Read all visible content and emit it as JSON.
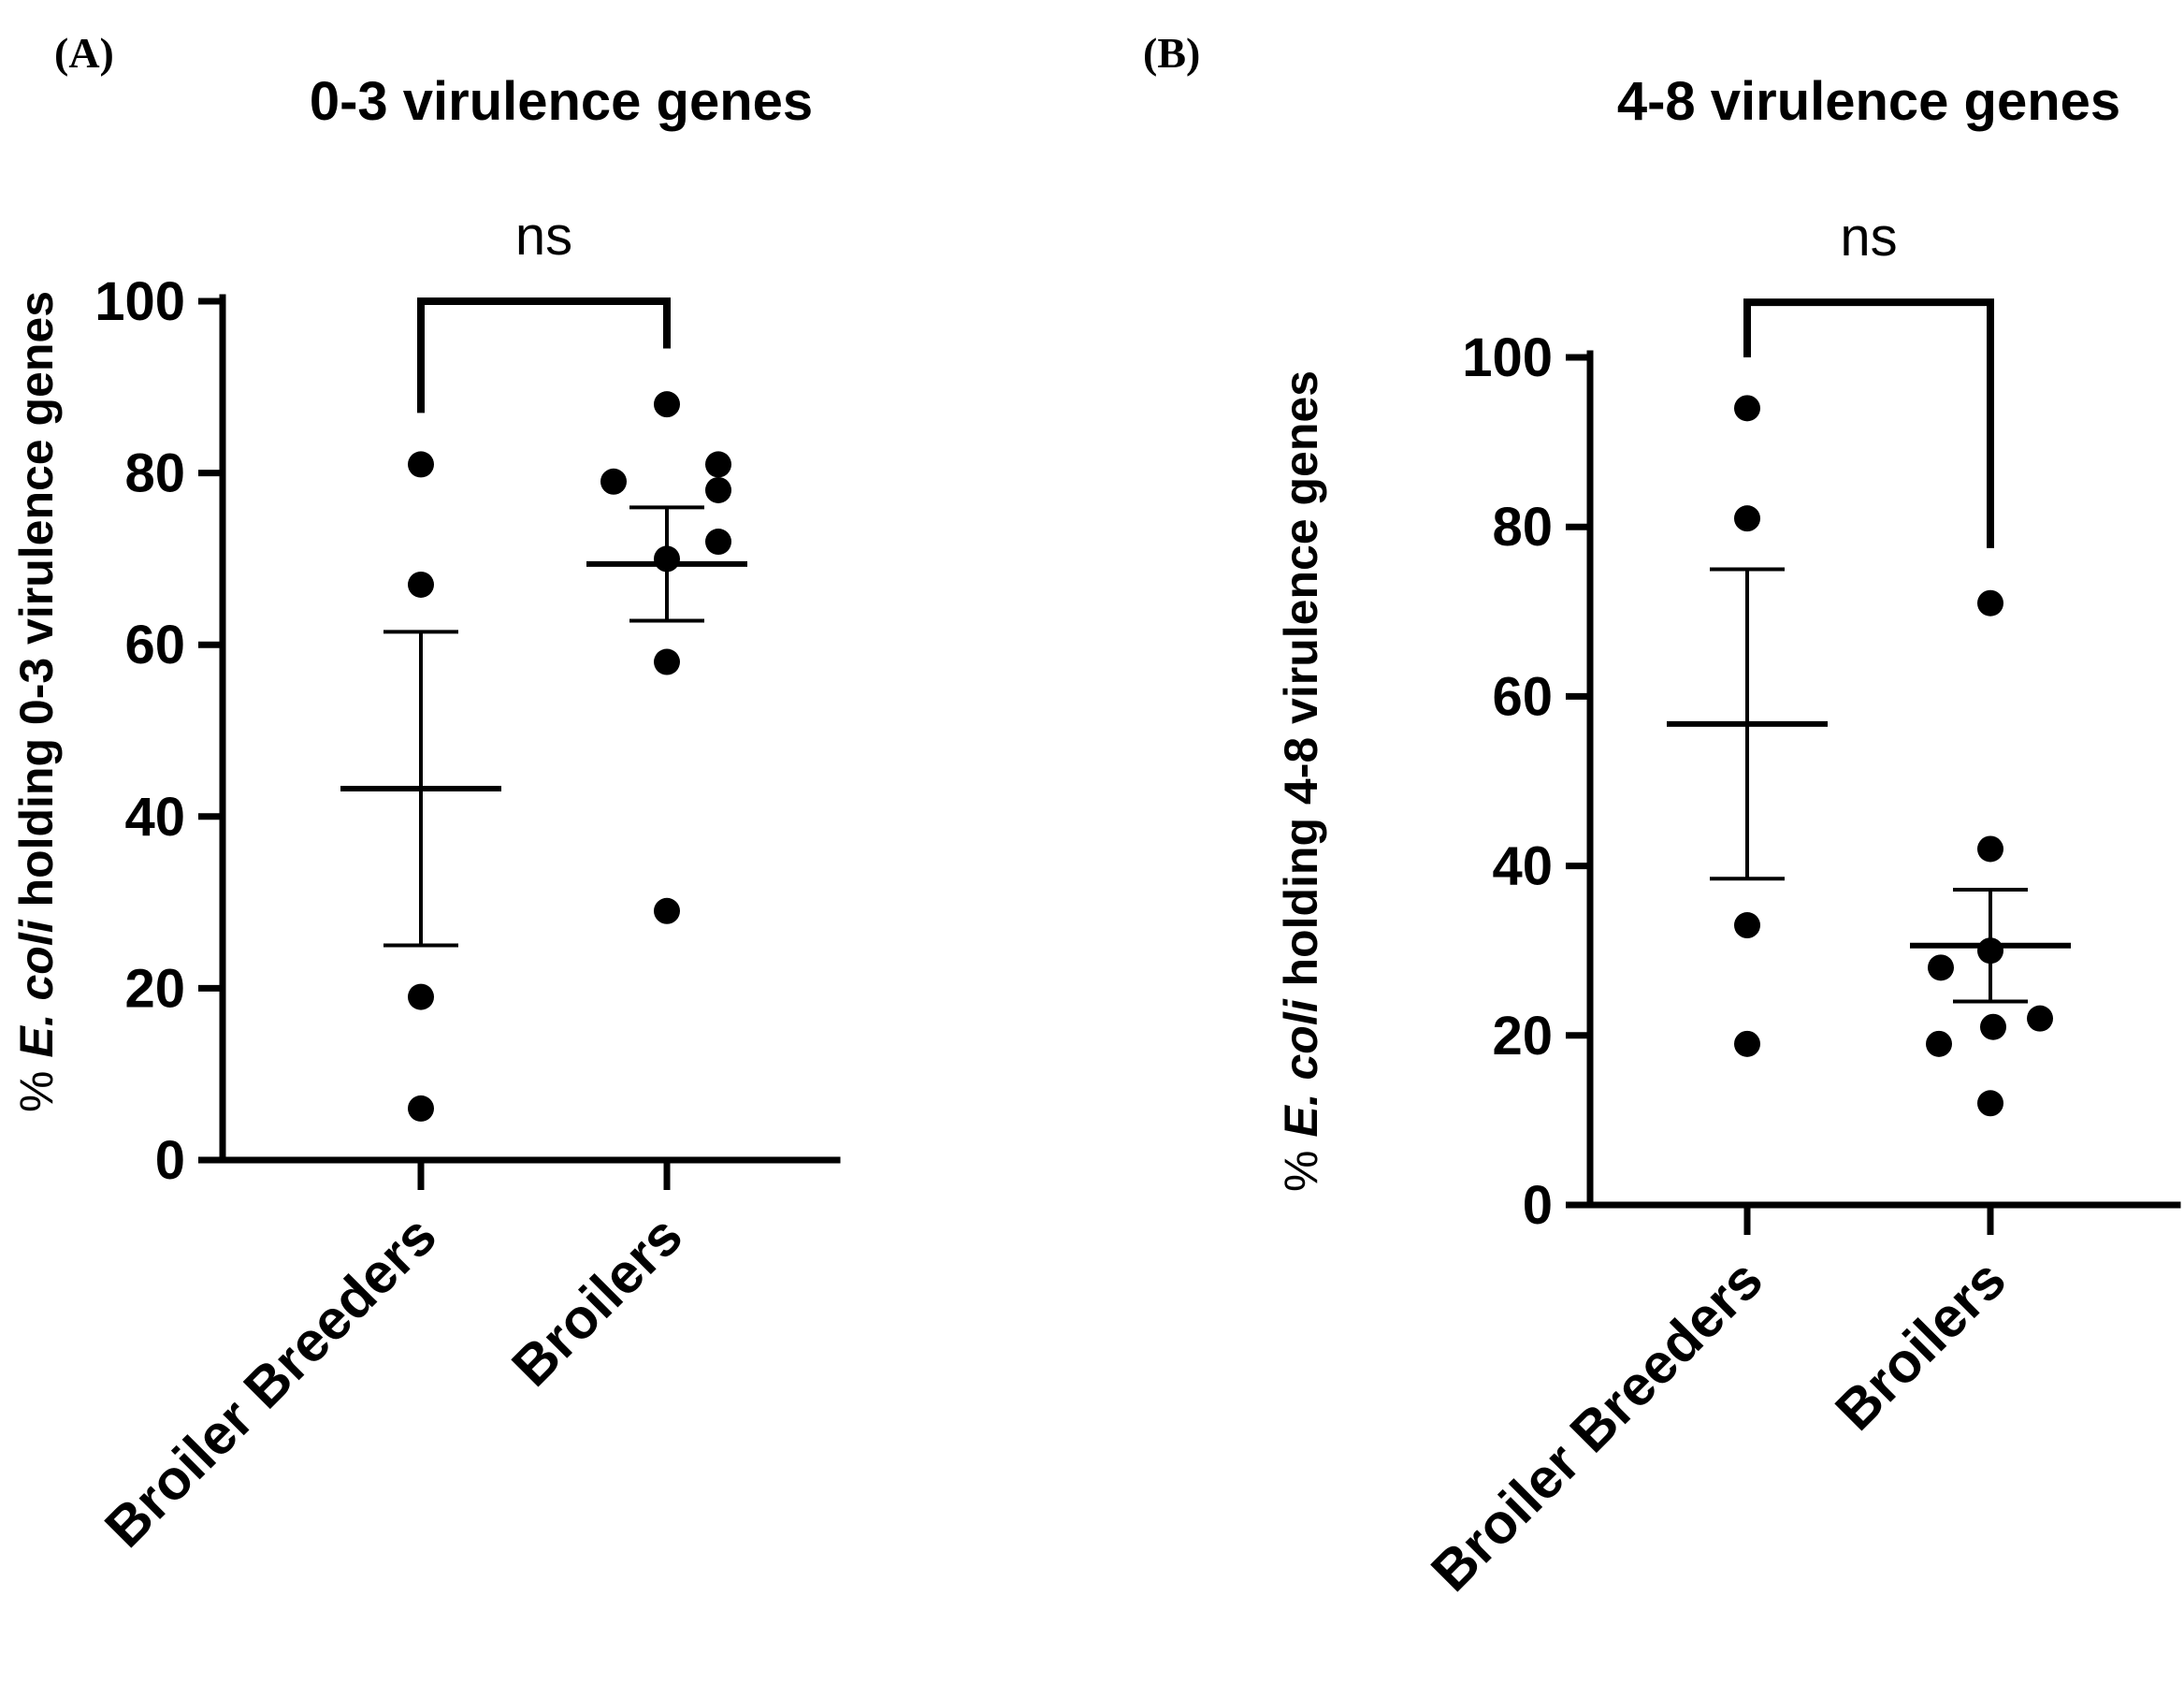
{
  "chart_data": [
    {
      "panel_label": "(A)",
      "type": "scatter",
      "title": "0-3 virulence genes",
      "ylabel": {
        "prefix": "% ",
        "italic": "E. coli",
        "suffix": " holding 0-3 virulence genes"
      },
      "xlabel": "",
      "ylim": [
        0,
        100
      ],
      "yticks": [
        "0",
        "20",
        "40",
        "60",
        "80",
        "100"
      ],
      "categories": [
        "Broiler Breeders",
        "Broilers"
      ],
      "series": [
        {
          "name": "Broiler Breeders",
          "values": [
            81,
            67,
            19,
            6
          ],
          "mean": 43.25,
          "sem_low": 25,
          "sem_high": 61.5
        },
        {
          "name": "Broilers",
          "values": [
            88,
            79,
            81,
            78,
            72,
            70,
            58,
            29
          ],
          "mean": 69.4,
          "sem_low": 62.8,
          "sem_high": 76
        }
      ],
      "significance": {
        "label": "ns",
        "bracket_top": 100,
        "left_leg_bottom": 87,
        "right_leg_bottom": 94.5
      }
    },
    {
      "panel_label": "(B)",
      "type": "scatter",
      "title": "4-8 virulence genes",
      "ylabel": {
        "prefix": "% ",
        "italic": "E. coli",
        "suffix": " holding 4-8 virulence genes"
      },
      "xlabel": "",
      "ylim": [
        0,
        100
      ],
      "yticks": [
        "0",
        "20",
        "40",
        "60",
        "80",
        "100"
      ],
      "categories": [
        "Broiler Breeders",
        "Broilers"
      ],
      "series": [
        {
          "name": "Broiler Breeders",
          "values": [
            94,
            81,
            33,
            19
          ],
          "mean": 56.75,
          "sem_low": 38.5,
          "sem_high": 75
        },
        {
          "name": "Broilers",
          "values": [
            71,
            42,
            30,
            28,
            22,
            21,
            19,
            12
          ],
          "mean": 30.6,
          "sem_low": 24,
          "sem_high": 37.2
        }
      ],
      "significance": {
        "label": "ns",
        "bracket_top": 106.5,
        "left_leg_bottom": 100,
        "right_leg_bottom": 77.5
      }
    }
  ]
}
